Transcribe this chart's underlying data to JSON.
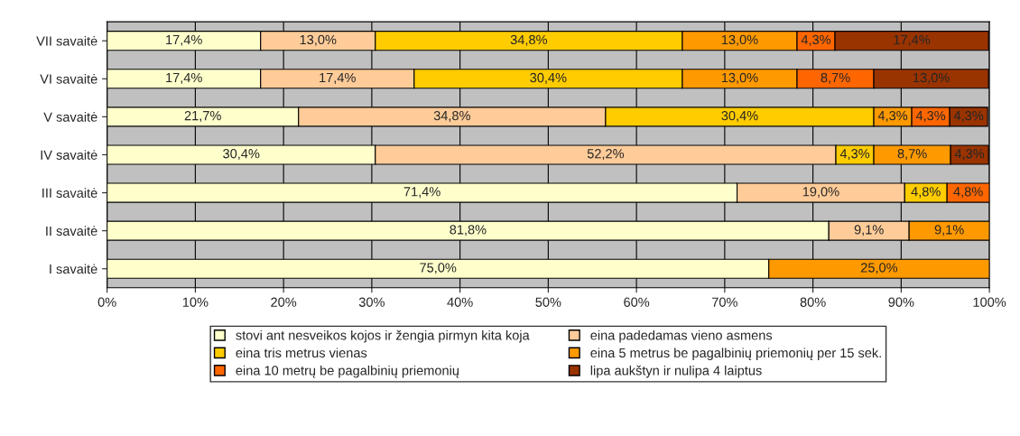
{
  "chart_data": {
    "type": "bar",
    "orientation": "horizontal",
    "stacked": true,
    "categories": [
      "VII savaitė",
      "VI savaitė",
      "V savaitė",
      "IV savaitė",
      "III savaitė",
      "II savaitė",
      "I savaitė"
    ],
    "series": [
      {
        "name": "stovi ant nesveikos kojos ir žengia pirmyn kita koja",
        "color": "#ffffcc",
        "values": [
          17.4,
          17.4,
          21.7,
          30.4,
          71.4,
          81.8,
          75.0
        ],
        "value_labels": [
          "17,4%",
          "17,4%",
          "21,7%",
          "30,4%",
          "71,4%",
          "81,8%",
          "75,0%"
        ]
      },
      {
        "name": "eina padedamas vieno asmens",
        "color": "#ffcc99",
        "values": [
          13.0,
          17.4,
          34.8,
          52.2,
          19.0,
          9.1,
          null
        ],
        "value_labels": [
          "13,0%",
          "17,4%",
          "34,8%",
          "52,2%",
          "19,0%",
          "9,1%",
          null
        ]
      },
      {
        "name": "eina tris metrus vienas",
        "color": "#ffcc00",
        "values": [
          34.8,
          30.4,
          30.4,
          4.3,
          4.8,
          null,
          null
        ],
        "value_labels": [
          "34,8%",
          "30,4%",
          "30,4%",
          "4,3%",
          "4,8%",
          null,
          null
        ]
      },
      {
        "name": "eina 5 metrus be pagalbinių priemonių per 15 sek.",
        "color": "#ff9900",
        "values": [
          13.0,
          13.0,
          4.3,
          8.7,
          null,
          9.1,
          25.0
        ],
        "value_labels": [
          "13,0%",
          "13,0%",
          "4,3%",
          "8,7%",
          null,
          "9,1%",
          "25,0%"
        ]
      },
      {
        "name": "eina 10 metrų be pagalbinių priemonių",
        "color": "#ff6600",
        "values": [
          4.3,
          8.7,
          4.3,
          null,
          4.8,
          null,
          null
        ],
        "value_labels": [
          "4,3%",
          "8,7%",
          "4,3%",
          null,
          "4,8%",
          null,
          null
        ]
      },
      {
        "name": "lipa aukštyn ir nulipa 4 laiptus",
        "color": "#993300",
        "values": [
          17.4,
          13.0,
          4.3,
          4.3,
          null,
          null,
          null
        ],
        "value_labels": [
          "17,4%",
          "13,0%",
          "4,3%",
          "4,3%",
          null,
          null,
          null
        ]
      }
    ],
    "xlim": [
      0,
      100
    ],
    "xticks": [
      {
        "value": 0,
        "label": "0%"
      },
      {
        "value": 10,
        "label": "10%"
      },
      {
        "value": 20,
        "label": "20%"
      },
      {
        "value": 30,
        "label": "30%"
      },
      {
        "value": 40,
        "label": "40%"
      },
      {
        "value": 50,
        "label": "50%"
      },
      {
        "value": 60,
        "label": "60%"
      },
      {
        "value": 70,
        "label": "70%"
      },
      {
        "value": 80,
        "label": "80%"
      },
      {
        "value": 90,
        "label": "90%"
      },
      {
        "value": 100,
        "label": "100%"
      }
    ],
    "grid": "x",
    "legend": "bottom"
  }
}
